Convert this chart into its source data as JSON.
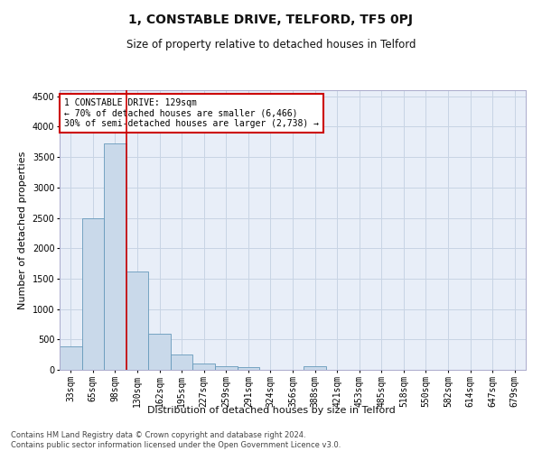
{
  "title": "1, CONSTABLE DRIVE, TELFORD, TF5 0PJ",
  "subtitle": "Size of property relative to detached houses in Telford",
  "xlabel": "Distribution of detached houses by size in Telford",
  "ylabel": "Number of detached properties",
  "categories": [
    "33sqm",
    "65sqm",
    "98sqm",
    "130sqm",
    "162sqm",
    "195sqm",
    "227sqm",
    "259sqm",
    "291sqm",
    "324sqm",
    "356sqm",
    "388sqm",
    "421sqm",
    "453sqm",
    "485sqm",
    "518sqm",
    "550sqm",
    "582sqm",
    "614sqm",
    "647sqm",
    "679sqm"
  ],
  "values": [
    390,
    2500,
    3720,
    1620,
    590,
    245,
    110,
    55,
    40,
    0,
    0,
    55,
    0,
    0,
    0,
    0,
    0,
    0,
    0,
    0,
    0
  ],
  "bar_color": "#c9d9ea",
  "bar_edge_color": "#6699bb",
  "vline_color": "#cc0000",
  "vline_x": 2.5,
  "annotation_text": "1 CONSTABLE DRIVE: 129sqm\n← 70% of detached houses are smaller (6,466)\n30% of semi-detached houses are larger (2,738) →",
  "annotation_box_color": "#ffffff",
  "annotation_box_edge_color": "#cc0000",
  "ylim": [
    0,
    4600
  ],
  "yticks": [
    0,
    500,
    1000,
    1500,
    2000,
    2500,
    3000,
    3500,
    4000,
    4500
  ],
  "grid_color": "#c8d4e4",
  "bg_color": "#e8eef8",
  "footer_line1": "Contains HM Land Registry data © Crown copyright and database right 2024.",
  "footer_line2": "Contains public sector information licensed under the Open Government Licence v3.0.",
  "title_fontsize": 10,
  "subtitle_fontsize": 8.5,
  "xlabel_fontsize": 8,
  "ylabel_fontsize": 8,
  "tick_fontsize": 7,
  "annot_fontsize": 7,
  "footer_fontsize": 6
}
